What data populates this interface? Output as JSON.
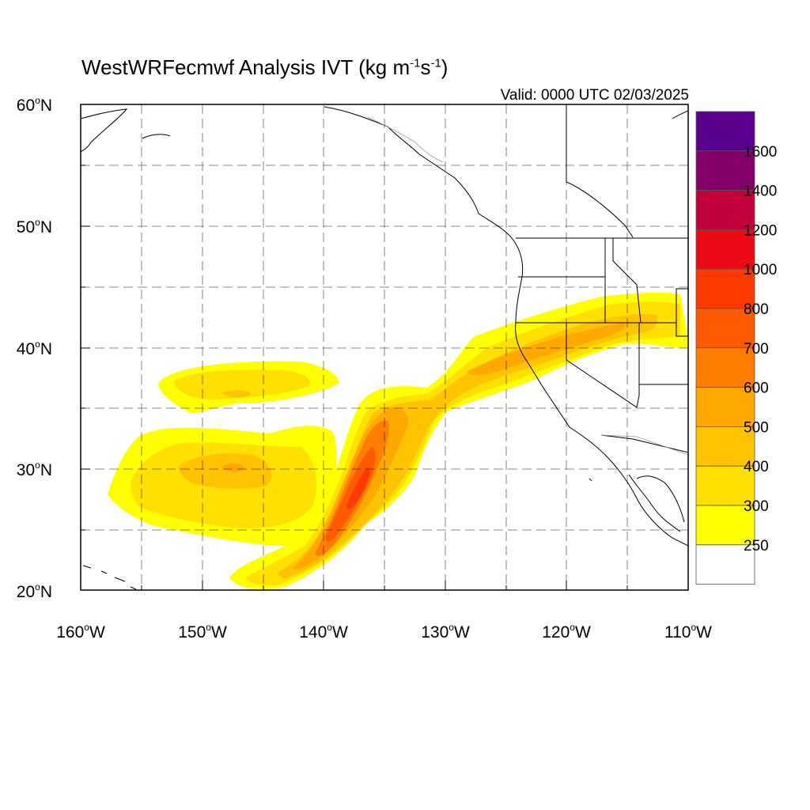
{
  "title": {
    "text": "WestWRFecmwf Analysis IVT (kg m",
    "exp1": "-1",
    "mid": "s",
    "exp2": "-1",
    "close": ")"
  },
  "valid_label": "Valid: 0000 UTC 02/03/2025",
  "map": {
    "lon_range": [
      -160,
      -110
    ],
    "lat_range": [
      20,
      60
    ],
    "lat_labels": [
      "60",
      "50",
      "40",
      "30",
      "20"
    ],
    "lat_suffix": "N",
    "lon_labels": [
      "160",
      "150",
      "140",
      "130",
      "120",
      "110"
    ],
    "lon_suffix": "W",
    "degree_symbol": "o",
    "grid": "dashed every 5 degrees"
  },
  "colorbar": {
    "labels": [
      "1600",
      "1400",
      "1200",
      "1000",
      "800",
      "700",
      "600",
      "500",
      "400",
      "300",
      "250"
    ],
    "colors_top_to_bottom": [
      "#5a0091",
      "#840068",
      "#c1003c",
      "#ec0a16",
      "#ff3a00",
      "#ff5a00",
      "#ff7d00",
      "#ffa800",
      "#ffc400",
      "#ffe000",
      "#ffff00",
      "#ffffff"
    ]
  },
  "ivt_colors": {
    "250": "#ffff00",
    "300": "#ffe000",
    "400": "#ffc400",
    "500": "#ffa800",
    "600": "#ff7d00",
    "700": "#ff5a00"
  }
}
